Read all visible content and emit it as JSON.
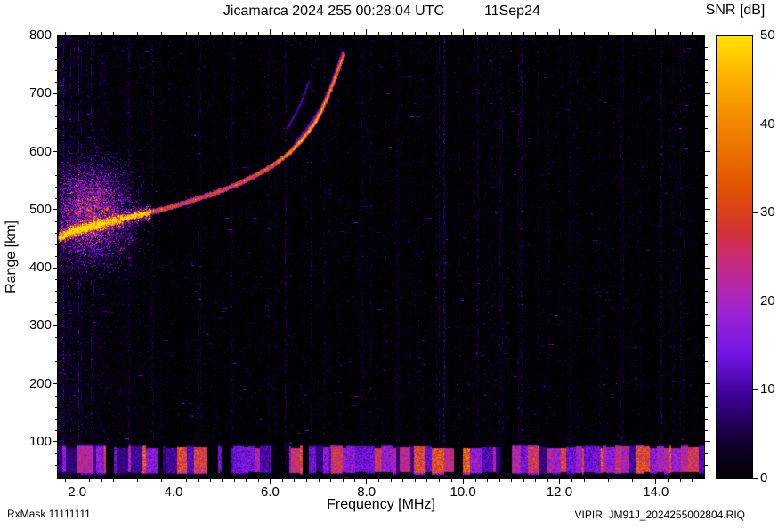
{
  "header": {
    "title": "Jicamarca 2024 255 00:28:04 UTC",
    "date": "11Sep24"
  },
  "footer": {
    "rx_mask": "RxMask 11111111",
    "file_id": "VIPIR  JM91J_2024255002804.RIQ"
  },
  "chart_data": {
    "type": "heatmap",
    "title": "Jicamarca 2024 255 00:28:04 UTC  11Sep24",
    "xlabel": "Frequency [MHz]",
    "ylabel": "Range [km]",
    "xlim": [
      1.6,
      15.0
    ],
    "ylim": [
      37,
      800
    ],
    "x_ticks": [
      2,
      4,
      6,
      8,
      10,
      12,
      14
    ],
    "x_tick_labels": [
      "2.0",
      "4.0",
      "6.0",
      "8.0",
      "10.0",
      "12.0",
      "14.0"
    ],
    "x_minor_step": 0.25,
    "y_ticks": [
      100,
      200,
      300,
      400,
      500,
      600,
      700,
      800
    ],
    "y_tick_labels": [
      "100",
      "200",
      "300",
      "400",
      "500",
      "600",
      "700",
      "800"
    ],
    "y_minor_step": 20,
    "grid": false,
    "background_color": "#000000",
    "colorbar": {
      "label": "SNR [dB]",
      "min": 0,
      "max": 50,
      "ticks": [
        0,
        10,
        20,
        30,
        40,
        50
      ],
      "tick_labels": [
        "0",
        "10",
        "20",
        "30",
        "40",
        "50"
      ],
      "stops": [
        [
          0.0,
          "#000000"
        ],
        [
          0.08,
          "#120030"
        ],
        [
          0.18,
          "#3c0090"
        ],
        [
          0.28,
          "#7415e8"
        ],
        [
          0.38,
          "#a024d2"
        ],
        [
          0.48,
          "#c62b8a"
        ],
        [
          0.56,
          "#d63333"
        ],
        [
          0.66,
          "#e25500"
        ],
        [
          0.78,
          "#f08000"
        ],
        [
          0.9,
          "#ffae00"
        ],
        [
          1.0,
          "#ffe300"
        ]
      ]
    },
    "series": [
      {
        "name": "F-region echo trace (o-mode), critical frequency ~7.5 MHz",
        "type": "trace",
        "snr_db_range": [
          28,
          46
        ],
        "points_mhz_km": [
          [
            1.62,
            452
          ],
          [
            1.75,
            458
          ],
          [
            1.9,
            463
          ],
          [
            2.1,
            468
          ],
          [
            2.35,
            473
          ],
          [
            2.6,
            478
          ],
          [
            2.9,
            484
          ],
          [
            3.2,
            490
          ],
          [
            3.5,
            496
          ],
          [
            3.8,
            502
          ],
          [
            4.1,
            509
          ],
          [
            4.4,
            517
          ],
          [
            4.7,
            525
          ],
          [
            5.0,
            534
          ],
          [
            5.3,
            544
          ],
          [
            5.6,
            556
          ],
          [
            5.9,
            569
          ],
          [
            6.15,
            583
          ],
          [
            6.4,
            599
          ],
          [
            6.6,
            616
          ],
          [
            6.78,
            634
          ],
          [
            6.93,
            652
          ],
          [
            7.05,
            670
          ],
          [
            7.15,
            688
          ],
          [
            7.25,
            708
          ],
          [
            7.35,
            730
          ],
          [
            7.45,
            752
          ],
          [
            7.52,
            768
          ]
        ]
      },
      {
        "name": "secondary spread echo above main trace",
        "type": "trace",
        "snr_db_range": [
          8,
          18
        ],
        "points_mhz_km": [
          [
            6.5,
            612
          ],
          [
            6.7,
            634
          ],
          [
            6.9,
            657
          ],
          [
            7.05,
            677
          ],
          [
            7.18,
            700
          ],
          [
            7.3,
            726
          ],
          [
            7.42,
            755
          ],
          [
            7.5,
            772
          ]
        ]
      },
      {
        "name": "oblique multiple echo",
        "type": "trace",
        "snr_db_range": [
          6,
          13
        ],
        "points_mhz_km": [
          [
            6.35,
            640
          ],
          [
            6.5,
            662
          ],
          [
            6.62,
            682
          ],
          [
            6.72,
            702
          ],
          [
            6.8,
            722
          ]
        ]
      }
    ],
    "e_region_band": {
      "range_km": [
        44,
        95
      ],
      "snr_db_range": [
        6,
        38
      ],
      "description": "full-width striped E-region / interference band"
    },
    "noise": {
      "background_snr_db": [
        0,
        8
      ],
      "left_cloud": {
        "center_mhz": 2.3,
        "center_km": 495,
        "sigma_mhz": 0.9,
        "sigma_km": 90,
        "max_snr_db": 18
      },
      "rfi_lines_mhz": [
        2.45,
        3.05,
        3.55,
        4.5,
        5.2,
        6.3,
        7.9,
        8.65,
        9.6,
        10.3,
        10.75,
        11.2,
        12.2,
        13.3,
        14.1,
        14.55
      ]
    }
  }
}
